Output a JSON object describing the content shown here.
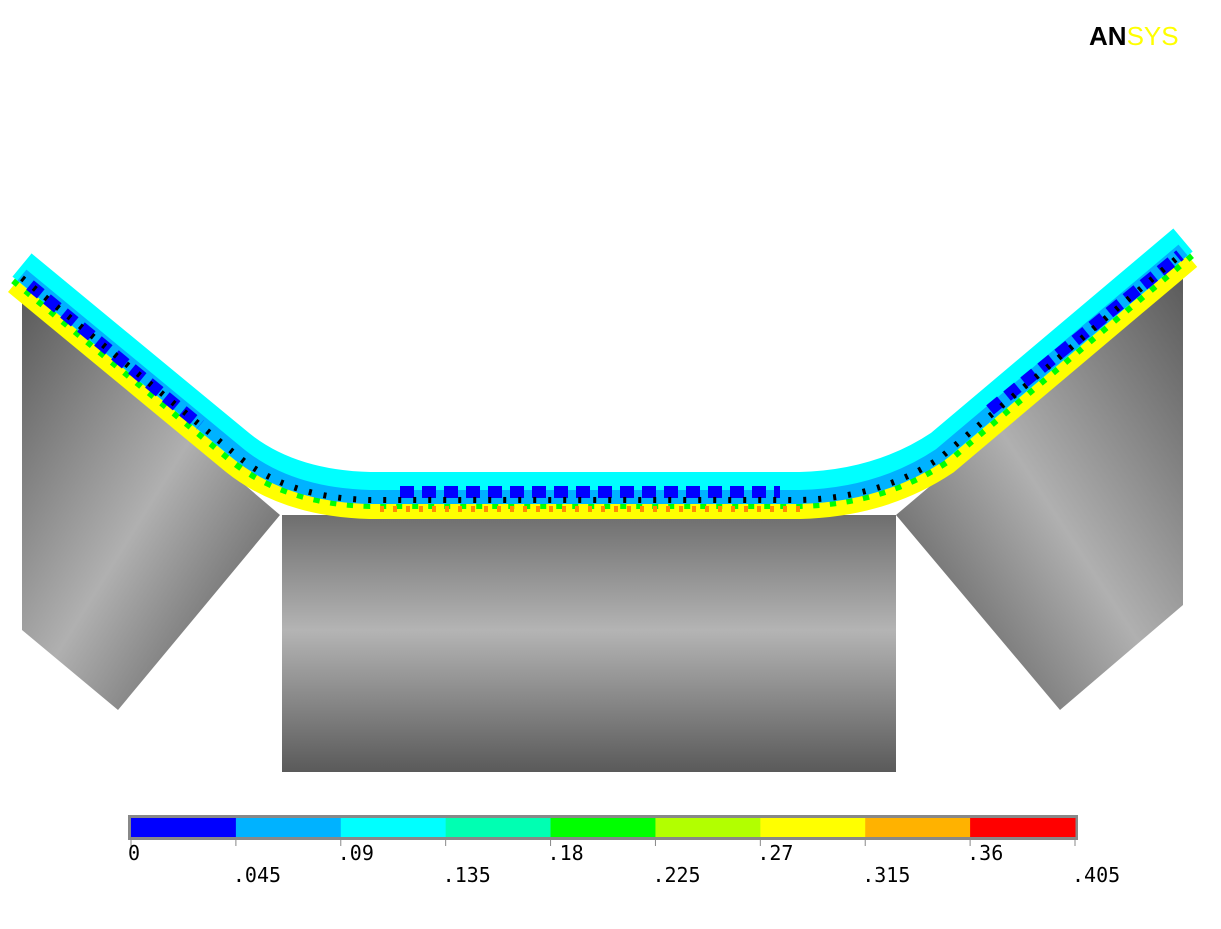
{
  "logo": {
    "part1": "AN",
    "part2": "SYS"
  },
  "legend": {
    "colors": [
      "#0000ff",
      "#00b2ff",
      "#00ffff",
      "#00ffb2",
      "#00ff00",
      "#b2ff00",
      "#ffff00",
      "#ffb200",
      "#ff0000"
    ],
    "ticks": [
      0,
      {
        "value": 0.045,
        "label": ".045"
      },
      {
        "value": 0.09,
        "label": ".09"
      },
      {
        "value": 0.135,
        "label": ".135"
      },
      {
        "value": 0.18,
        "label": ".18"
      },
      {
        "value": 0.225,
        "label": ".225"
      },
      {
        "value": 0.27,
        "label": ".27"
      },
      {
        "value": 0.315,
        "label": ".315"
      },
      {
        "value": 0.36,
        "label": ".36"
      },
      {
        "value": 0.405,
        "label": ".405"
      }
    ]
  }
}
